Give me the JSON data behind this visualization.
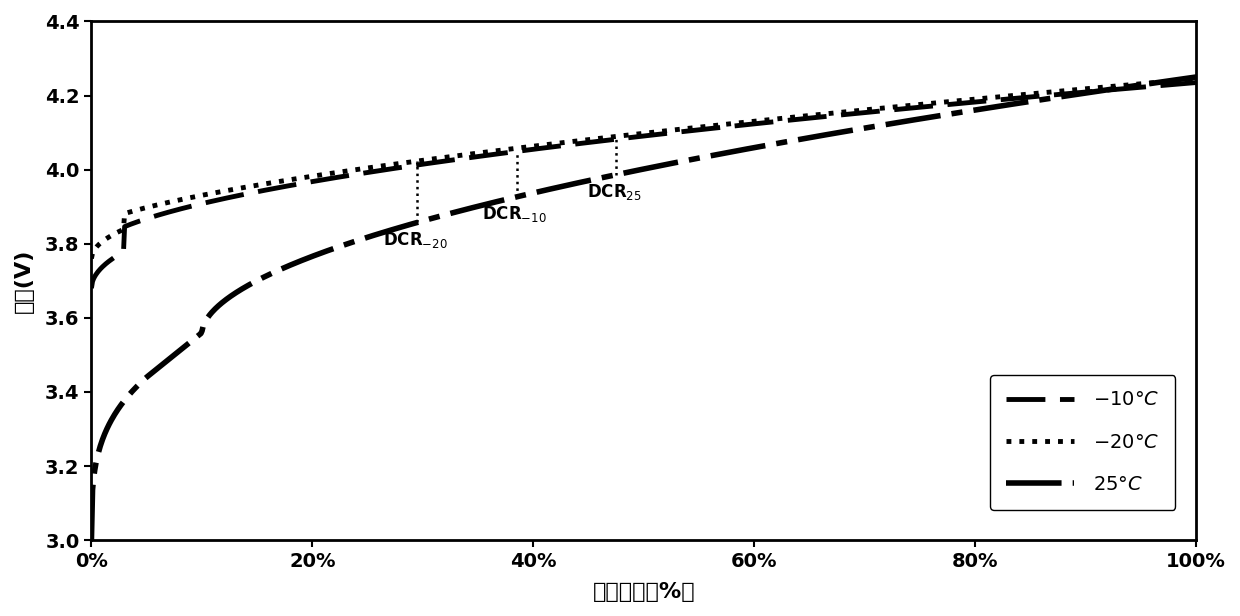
{
  "title": "",
  "xlabel": "荷电状态（%）",
  "ylabel": "电压(V)",
  "xlim": [
    0,
    1.0
  ],
  "ylim": [
    3.0,
    4.4
  ],
  "xticks": [
    0,
    0.2,
    0.4,
    0.6,
    0.8,
    1.0
  ],
  "xtick_labels": [
    "0%",
    "20%",
    "40%",
    "60%",
    "80%",
    "100%"
  ],
  "yticks": [
    3.0,
    3.2,
    3.4,
    3.6,
    3.8,
    4.0,
    4.2,
    4.4
  ],
  "line_color": "#000000",
  "background": "#ffffff"
}
